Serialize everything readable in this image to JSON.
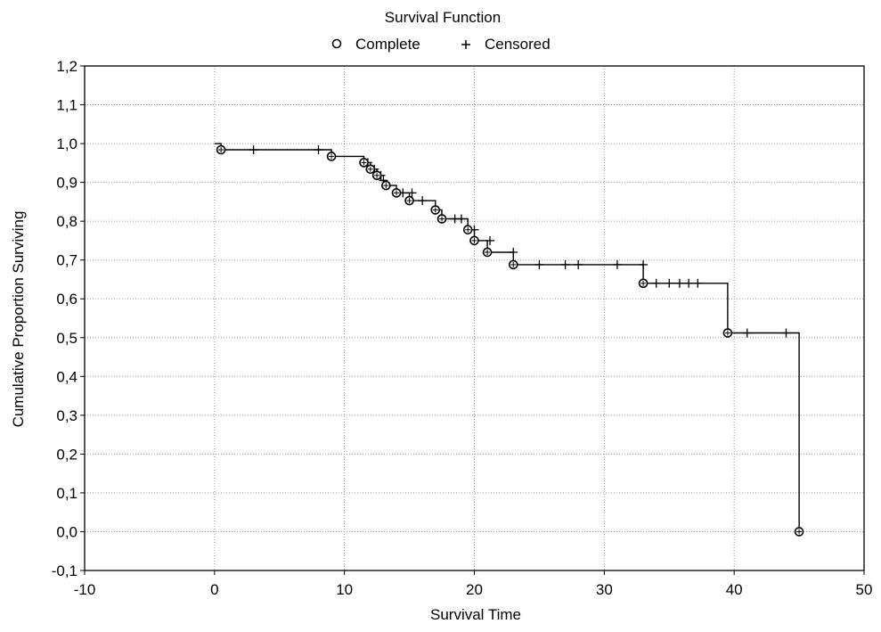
{
  "chart_data": {
    "type": "line",
    "title": "Survival Function",
    "xlabel": "Survival Time",
    "ylabel": "Cumulative Proportion Surviving",
    "xlim": [
      -10,
      50
    ],
    "ylim": [
      -0.1,
      1.2
    ],
    "x_ticks": [
      -10,
      0,
      10,
      20,
      30,
      40,
      50
    ],
    "x_tick_labels": [
      "-10",
      "0",
      "10",
      "20",
      "30",
      "40",
      "50"
    ],
    "y_ticks": [
      -0.1,
      0.0,
      0.1,
      0.2,
      0.3,
      0.4,
      0.5,
      0.6,
      0.7,
      0.8,
      0.9,
      1.0,
      1.1,
      1.2
    ],
    "y_tick_labels": [
      "-0,1",
      "0,0",
      "0,1",
      "0,2",
      "0,3",
      "0,4",
      "0,5",
      "0,6",
      "0,7",
      "0,8",
      "0,9",
      "1,0",
      "1,1",
      "1,2"
    ],
    "grid": true,
    "grid_style": "dotted",
    "legend_position": "top-center",
    "legend": [
      {
        "symbol": "o",
        "label": "Complete"
      },
      {
        "symbol": "+",
        "label": "Censored"
      }
    ],
    "step_curve": [
      [
        0,
        1.0
      ],
      [
        0.5,
        1.0
      ],
      [
        0.5,
        0.984
      ],
      [
        9.0,
        0.984
      ],
      [
        9.0,
        0.967
      ],
      [
        11.5,
        0.967
      ],
      [
        11.5,
        0.951
      ],
      [
        12.0,
        0.951
      ],
      [
        12.0,
        0.934
      ],
      [
        12.5,
        0.934
      ],
      [
        12.5,
        0.918
      ],
      [
        12.8,
        0.918
      ],
      [
        12.8,
        0.905
      ],
      [
        13.2,
        0.905
      ],
      [
        13.2,
        0.892
      ],
      [
        14.0,
        0.892
      ],
      [
        14.0,
        0.873
      ],
      [
        15.0,
        0.873
      ],
      [
        15.0,
        0.853
      ],
      [
        17.0,
        0.853
      ],
      [
        17.0,
        0.829
      ],
      [
        17.5,
        0.829
      ],
      [
        17.5,
        0.806
      ],
      [
        19.5,
        0.806
      ],
      [
        19.5,
        0.778
      ],
      [
        20.0,
        0.778
      ],
      [
        20.0,
        0.75
      ],
      [
        21.0,
        0.75
      ],
      [
        21.0,
        0.72
      ],
      [
        23.0,
        0.72
      ],
      [
        23.0,
        0.688
      ],
      [
        33.0,
        0.688
      ],
      [
        33.0,
        0.64
      ],
      [
        39.5,
        0.64
      ],
      [
        39.5,
        0.512
      ],
      [
        45.0,
        0.512
      ],
      [
        45.0,
        0.0
      ]
    ],
    "series": [
      {
        "name": "Complete",
        "marker": "circle",
        "x": [
          0.5,
          9.0,
          11.5,
          12.0,
          12.5,
          13.2,
          14.0,
          15.0,
          17.0,
          17.5,
          19.5,
          20.0,
          21.0,
          23.0,
          33.0,
          39.5,
          45.0
        ],
        "y": [
          0.984,
          0.967,
          0.951,
          0.934,
          0.918,
          0.892,
          0.873,
          0.853,
          0.829,
          0.806,
          0.778,
          0.75,
          0.72,
          0.688,
          0.64,
          0.512,
          0.0
        ]
      },
      {
        "name": "Censored",
        "marker": "plus",
        "x": [
          3.0,
          8.0,
          11.8,
          12.3,
          12.8,
          13.0,
          14.5,
          15.2,
          16.0,
          18.5,
          19.0,
          20.0,
          21.2,
          23.0,
          25.0,
          27.0,
          28.0,
          31.0,
          33.0,
          34.0,
          35.0,
          35.8,
          36.5,
          37.2,
          41.0,
          44.0
        ],
        "y": [
          0.984,
          0.984,
          0.951,
          0.934,
          0.918,
          0.905,
          0.873,
          0.873,
          0.853,
          0.806,
          0.806,
          0.778,
          0.75,
          0.72,
          0.688,
          0.688,
          0.688,
          0.688,
          0.688,
          0.64,
          0.64,
          0.64,
          0.64,
          0.64,
          0.512,
          0.512
        ]
      }
    ]
  }
}
